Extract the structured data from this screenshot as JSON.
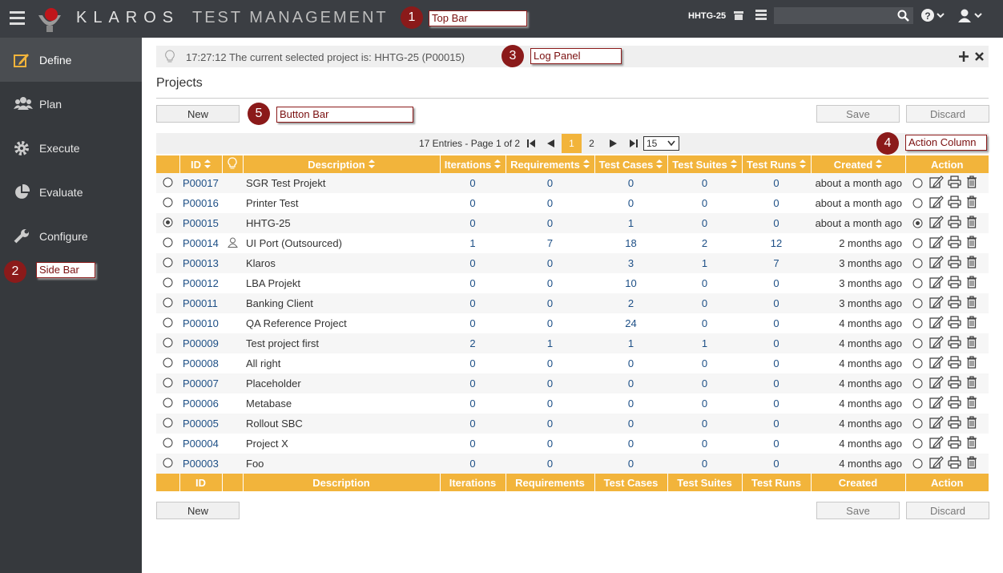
{
  "top_bar": {
    "logo": "KLAROS",
    "product": "TEST MANAGEMENT",
    "project": "HHTG-25"
  },
  "sidebar": {
    "items": [
      "Define",
      "Plan",
      "Execute",
      "Evaluate",
      "Configure"
    ],
    "active": 0
  },
  "log_panel": {
    "message": "17:27:12 The current selected project is: HHTG-25 (P00015)"
  },
  "page_title": "Projects",
  "buttons": {
    "new": "New",
    "save": "Save",
    "discard": "Discard"
  },
  "pagination": {
    "summary": "17 Entries - Page 1 of 2",
    "pages": [
      1,
      2
    ],
    "current": 1,
    "page_size": 15
  },
  "table": {
    "columns": [
      "ID",
      "Description",
      "Iterations",
      "Requirements",
      "Test Cases",
      "Test Suites",
      "Test Runs",
      "Created",
      "Action"
    ],
    "rows": [
      {
        "id": "P00017",
        "description": "SGR Test Projekt",
        "iterations": 0,
        "requirements": 0,
        "test_cases": 0,
        "test_suites": 0,
        "test_runs": 0,
        "created": "about a month ago"
      },
      {
        "id": "P00016",
        "description": "Printer Test",
        "iterations": 0,
        "requirements": 0,
        "test_cases": 0,
        "test_suites": 0,
        "test_runs": 0,
        "created": "about a month ago"
      },
      {
        "id": "P00015",
        "description": "HHTG-25",
        "iterations": 0,
        "requirements": 0,
        "test_cases": 1,
        "test_suites": 0,
        "test_runs": 0,
        "created": "about a month ago",
        "selected": true
      },
      {
        "id": "P00014",
        "description": "UI Port (Outsourced)",
        "iterations": 1,
        "requirements": 7,
        "test_cases": 18,
        "test_suites": 2,
        "test_runs": 12,
        "created": "2 months ago",
        "user_icon": true
      },
      {
        "id": "P00013",
        "description": "Klaros",
        "iterations": 0,
        "requirements": 0,
        "test_cases": 3,
        "test_suites": 1,
        "test_runs": 7,
        "created": "3 months ago"
      },
      {
        "id": "P00012",
        "description": "LBA Projekt",
        "iterations": 0,
        "requirements": 0,
        "test_cases": 10,
        "test_suites": 0,
        "test_runs": 0,
        "created": "3 months ago"
      },
      {
        "id": "P00011",
        "description": "Banking Client",
        "iterations": 0,
        "requirements": 0,
        "test_cases": 2,
        "test_suites": 0,
        "test_runs": 0,
        "created": "3 months ago"
      },
      {
        "id": "P00010",
        "description": "QA Reference Project",
        "iterations": 0,
        "requirements": 0,
        "test_cases": 24,
        "test_suites": 0,
        "test_runs": 0,
        "created": "4 months ago"
      },
      {
        "id": "P00009",
        "description": "Test project first",
        "iterations": 2,
        "requirements": 1,
        "test_cases": 1,
        "test_suites": 1,
        "test_runs": 0,
        "created": "4 months ago"
      },
      {
        "id": "P00008",
        "description": "All right",
        "iterations": 0,
        "requirements": 0,
        "test_cases": 0,
        "test_suites": 0,
        "test_runs": 0,
        "created": "4 months ago"
      },
      {
        "id": "P00007",
        "description": "Placeholder",
        "iterations": 0,
        "requirements": 0,
        "test_cases": 0,
        "test_suites": 0,
        "test_runs": 0,
        "created": "4 months ago"
      },
      {
        "id": "P00006",
        "description": "Metabase",
        "iterations": 0,
        "requirements": 0,
        "test_cases": 0,
        "test_suites": 0,
        "test_runs": 0,
        "created": "4 months ago"
      },
      {
        "id": "P00005",
        "description": "Rollout SBC",
        "iterations": 0,
        "requirements": 0,
        "test_cases": 0,
        "test_suites": 0,
        "test_runs": 0,
        "created": "4 months ago"
      },
      {
        "id": "P00004",
        "description": "Project X",
        "iterations": 0,
        "requirements": 0,
        "test_cases": 0,
        "test_suites": 0,
        "test_runs": 0,
        "created": "4 months ago"
      },
      {
        "id": "P00003",
        "description": "Foo",
        "iterations": 0,
        "requirements": 0,
        "test_cases": 0,
        "test_suites": 0,
        "test_runs": 0,
        "created": "4 months ago"
      }
    ]
  },
  "annotations": [
    {
      "number": 1,
      "label": "Top Bar"
    },
    {
      "number": 2,
      "label": "Side Bar"
    },
    {
      "number": 3,
      "label": "Log Panel"
    },
    {
      "number": 4,
      "label": "Action Column"
    },
    {
      "number": 5,
      "label": "Button Bar"
    }
  ]
}
